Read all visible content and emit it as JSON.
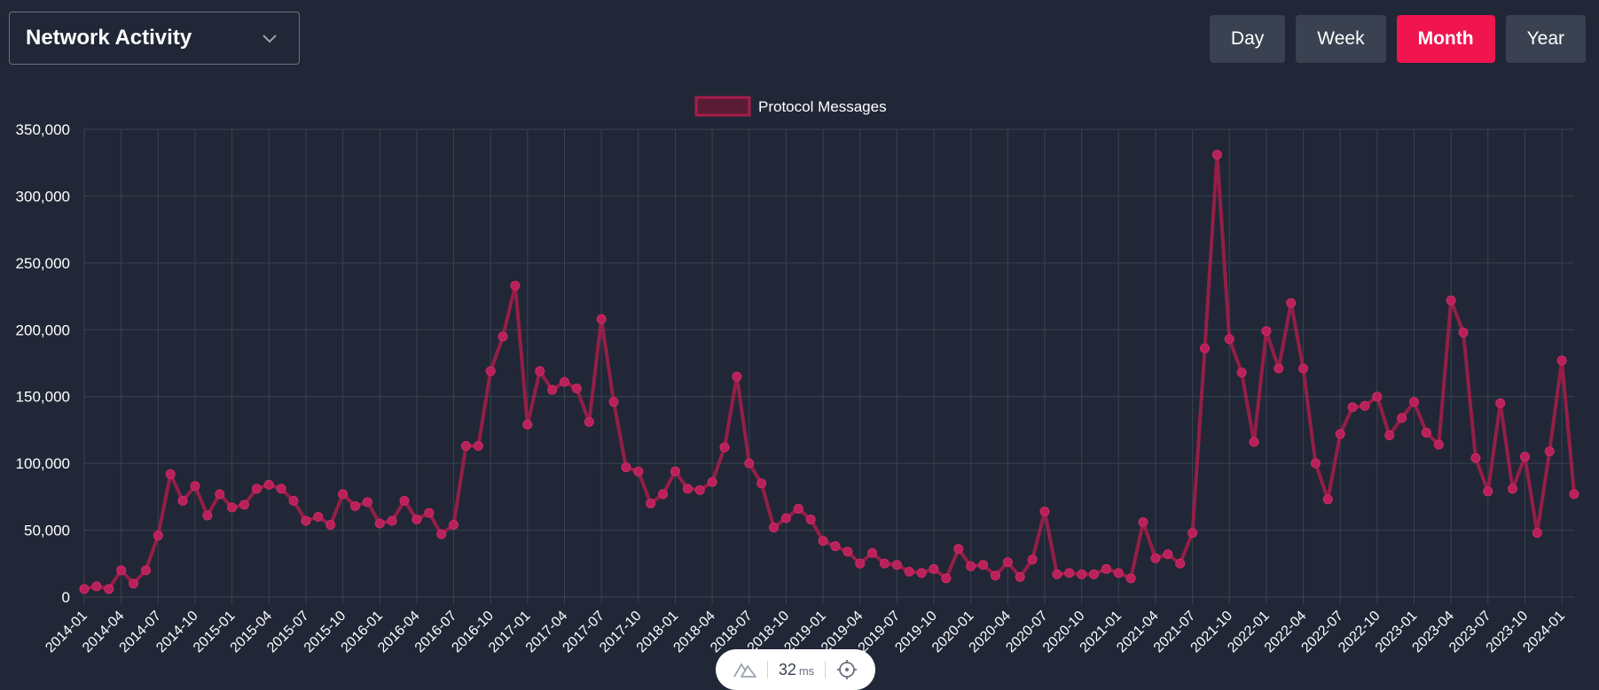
{
  "dropdown": {
    "label": "Network Activity"
  },
  "range_buttons": [
    {
      "label": "Day",
      "active": false
    },
    {
      "label": "Week",
      "active": false
    },
    {
      "label": "Month",
      "active": true
    },
    {
      "label": "Year",
      "active": false
    }
  ],
  "colors": {
    "background": "#212736",
    "accent": "#f0144f",
    "line": "#a81d4a",
    "button_bg": "#3a4150",
    "grid": "#3a4252"
  },
  "perf": {
    "value": "32",
    "unit": "ms",
    "left_icon": "nuxt-devtools-icon",
    "right_icon": "crosshair-icon"
  },
  "chart_data": {
    "type": "line",
    "title": "",
    "xlabel": "",
    "ylabel": "",
    "legend": {
      "position": "top-center"
    },
    "grid": true,
    "ylim": [
      0,
      350000
    ],
    "y_ticks": [
      0,
      50000,
      100000,
      150000,
      200000,
      250000,
      300000,
      350000
    ],
    "y_tick_labels": [
      "0",
      "50,000",
      "100,000",
      "150,000",
      "200,000",
      "250,000",
      "300,000",
      "350,000"
    ],
    "x_tick_labels": [
      "2014-01",
      "2014-04",
      "2014-07",
      "2014-10",
      "2015-01",
      "2015-04",
      "2015-07",
      "2015-10",
      "2016-01",
      "2016-04",
      "2016-07",
      "2016-10",
      "2017-01",
      "2017-04",
      "2017-07",
      "2017-10",
      "2018-01",
      "2018-04",
      "2018-07",
      "2018-10",
      "2019-01",
      "2019-04",
      "2019-07",
      "2019-10",
      "2020-01",
      "2020-04",
      "2020-07",
      "2020-10",
      "2021-01",
      "2021-04",
      "2021-07",
      "2021-10",
      "2022-01",
      "2022-04",
      "2022-07",
      "2022-10",
      "2023-01",
      "2023-04",
      "2023-07",
      "2023-10",
      "2024-01"
    ],
    "x_tick_every": 3,
    "series": [
      {
        "name": "Protocol Messages",
        "values": [
          6000,
          8000,
          6000,
          20000,
          10000,
          20000,
          46000,
          92000,
          72000,
          83000,
          61000,
          77000,
          67000,
          69000,
          81000,
          84000,
          81000,
          72000,
          57000,
          60000,
          54000,
          77000,
          68000,
          71000,
          55000,
          57000,
          72000,
          58000,
          63000,
          47000,
          54000,
          113000,
          113000,
          169000,
          195000,
          233000,
          129000,
          169000,
          155000,
          161000,
          156000,
          131000,
          208000,
          146000,
          97000,
          94000,
          70000,
          77000,
          94000,
          81000,
          80000,
          86000,
          112000,
          165000,
          100000,
          85000,
          52000,
          59000,
          66000,
          58000,
          42000,
          38000,
          34000,
          25000,
          33000,
          25000,
          24000,
          19000,
          18000,
          21000,
          14000,
          36000,
          23000,
          24000,
          16000,
          26000,
          15000,
          28000,
          64000,
          17000,
          18000,
          17000,
          17000,
          21000,
          18000,
          14000,
          56000,
          29000,
          32000,
          25000,
          48000,
          186000,
          331000,
          193000,
          168000,
          116000,
          199000,
          171000,
          220000,
          171000,
          100000,
          73000,
          122000,
          142000,
          143000,
          150000,
          121000,
          134000,
          146000,
          123000,
          114000,
          222000,
          198000,
          104000,
          79000,
          145000,
          81000,
          105000,
          48000,
          109000,
          177000,
          77000
        ]
      }
    ]
  }
}
